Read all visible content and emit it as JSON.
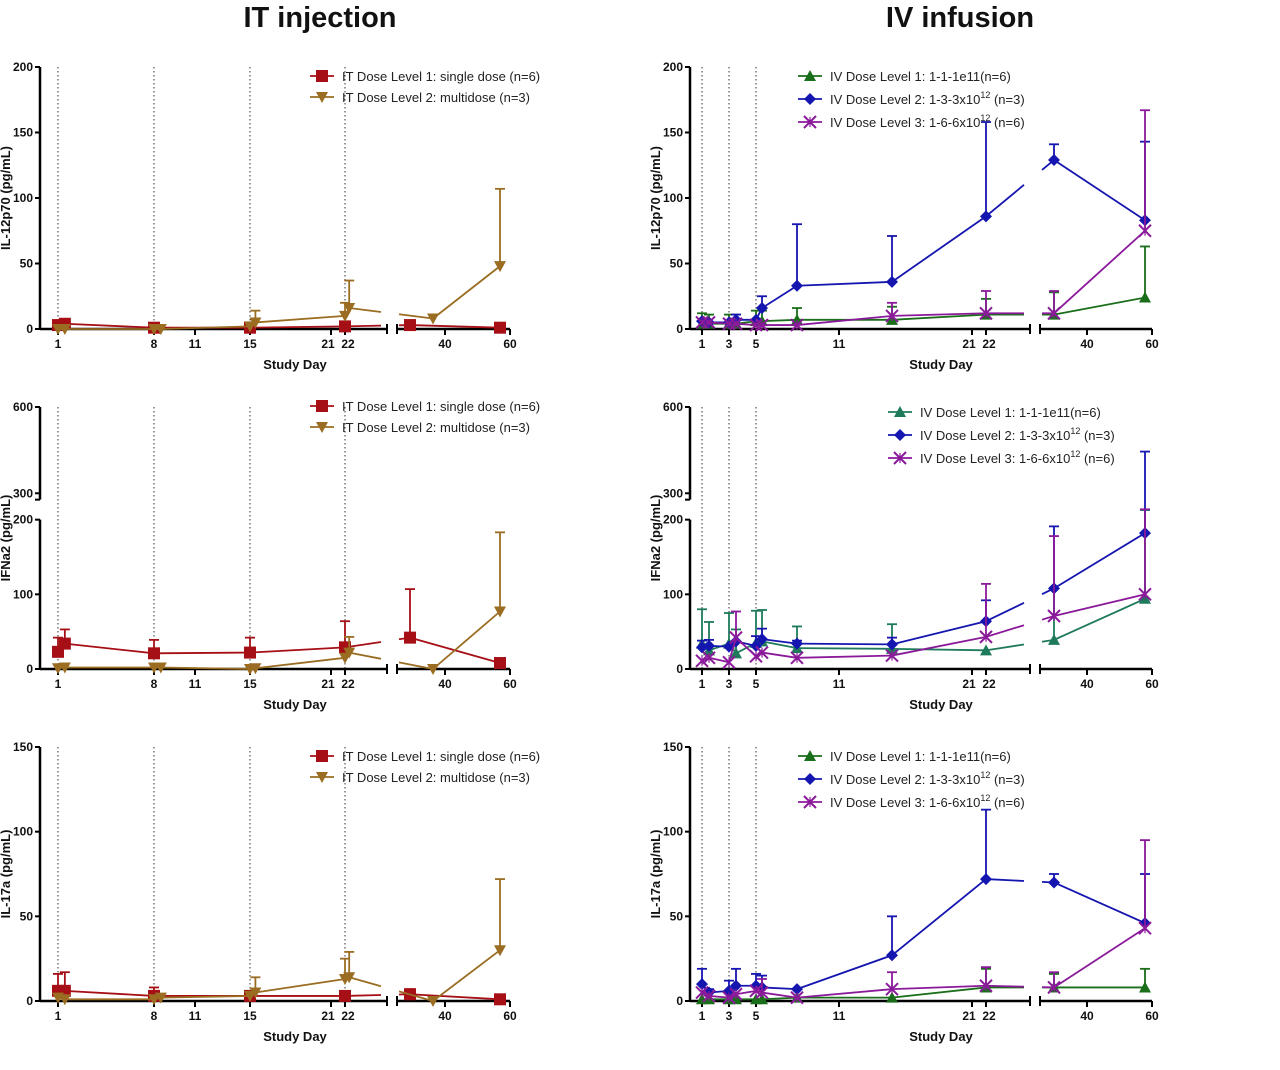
{
  "columns": [
    {
      "title": "IT injection"
    },
    {
      "title": "IV infusion"
    }
  ],
  "chart_data": [
    {
      "id": "it-il12",
      "type": "line",
      "column": "IT injection",
      "ylabel": "IL-12p70 (pg/mL)",
      "xlabel": "Study Day",
      "ylim": [
        0,
        200
      ],
      "yticks": [
        0,
        50,
        100,
        150,
        200
      ],
      "xticks": [
        "1",
        "8",
        "11",
        "15",
        "21",
        "22",
        "40",
        "60"
      ],
      "x_break": true,
      "dose_days": [
        1,
        8,
        15,
        22
      ],
      "series": [
        {
          "name": "IT Dose Level 1: single dose (n=6)",
          "color": "#a50f15",
          "marker": "square",
          "x": [
            1,
            2,
            8,
            15,
            22,
            29,
            57
          ],
          "y": [
            3,
            4,
            1,
            1,
            2,
            3,
            1
          ],
          "err_upper": [
            null,
            null,
            null,
            null,
            null,
            null,
            null
          ]
        },
        {
          "name": "IT Dose Level 2: multidose (n=3)",
          "color": "#9a6d22",
          "marker": "triangle-down",
          "x": [
            1,
            2,
            8,
            9,
            15,
            16,
            22,
            23,
            36,
            57
          ],
          "y": [
            0,
            0,
            0,
            0,
            2,
            5,
            10,
            16,
            8,
            48
          ],
          "err_upper": [
            null,
            null,
            null,
            null,
            null,
            14,
            20,
            37,
            null,
            107
          ]
        }
      ]
    },
    {
      "id": "iv-il12",
      "type": "line",
      "column": "IV infusion",
      "ylabel": "IL-12p70 (pg/mL)",
      "xlabel": "Study Day",
      "ylim": [
        0,
        200
      ],
      "yticks": [
        0,
        50,
        100,
        150,
        200
      ],
      "xticks": [
        "1",
        "3",
        "5",
        "11",
        "21",
        "22",
        "40",
        "60"
      ],
      "x_break": true,
      "dose_days": [
        1,
        3,
        5
      ],
      "series": [
        {
          "name": "IV Dose Level 1: 1-1-1e11(n=6)",
          "color": "#1a6e1a",
          "marker": "triangle-up",
          "x": [
            1,
            1.5,
            3,
            3.5,
            5,
            5.5,
            8,
            15,
            22,
            29,
            57
          ],
          "y": [
            4,
            4,
            4,
            4,
            6,
            6,
            7,
            7,
            11,
            11,
            24
          ],
          "err_upper": [
            12,
            11,
            11,
            11,
            14,
            14,
            16,
            17,
            23,
            28,
            63
          ]
        },
        {
          "name": "IV Dose Level 2: 1-3-3x10^12 (n=3)",
          "color": "#1515b0",
          "marker": "diamond",
          "x": [
            1,
            1.5,
            3,
            3.5,
            5,
            5.5,
            8,
            15,
            22,
            29,
            57
          ],
          "y": [
            6,
            5,
            5,
            7,
            7,
            16,
            33,
            36,
            86,
            129,
            83
          ],
          "err_upper": [
            null,
            null,
            null,
            11,
            null,
            25,
            80,
            71,
            158,
            141,
            143
          ]
        },
        {
          "name": "IV Dose Level 3: 1-6-6x10^12 (n=6)",
          "color": "#8a1a9a",
          "marker": "x",
          "x": [
            1,
            1.5,
            3,
            3.5,
            5,
            5.5,
            8,
            15,
            22,
            29,
            57
          ],
          "y": [
            5,
            5,
            4,
            4,
            3,
            3,
            3,
            10,
            12,
            12,
            75
          ],
          "err_upper": [
            null,
            null,
            null,
            null,
            null,
            null,
            null,
            20,
            29,
            29,
            167
          ]
        }
      ]
    },
    {
      "id": "it-ifna2",
      "type": "line",
      "column": "IT injection",
      "ylabel": "IFNa2 (pg/mL)",
      "xlabel": "Study Day",
      "ylim": [
        0,
        600
      ],
      "y_break": [
        200,
        250
      ],
      "yticks": [
        0,
        100,
        200,
        300,
        600
      ],
      "xticks": [
        "1",
        "8",
        "11",
        "15",
        "21",
        "22",
        "40",
        "60"
      ],
      "x_break": true,
      "dose_days": [
        1,
        8,
        15,
        22
      ],
      "series": [
        {
          "name": "IT Dose Level 1: single dose (n=6)",
          "color": "#a50f15",
          "marker": "square",
          "x": [
            1,
            2,
            8,
            15,
            22,
            29,
            57
          ],
          "y": [
            23,
            34,
            21,
            22,
            29,
            42,
            8
          ],
          "err_upper": [
            42,
            53,
            39,
            42,
            64,
            107,
            null
          ]
        },
        {
          "name": "IT Dose Level 2: multidose (n=3)",
          "color": "#9a6d22",
          "marker": "triangle-down",
          "x": [
            1,
            2,
            8,
            9,
            15,
            16,
            22,
            23,
            36,
            57
          ],
          "y": [
            1,
            2,
            2,
            2,
            0,
            1,
            15,
            22,
            0,
            77
          ],
          "err_upper": [
            null,
            null,
            null,
            null,
            null,
            null,
            null,
            43,
            null,
            183
          ]
        }
      ]
    },
    {
      "id": "iv-ifna2",
      "type": "line",
      "column": "IV infusion",
      "ylabel": "IFNa2 (pg/mL)",
      "xlabel": "Study Day",
      "ylim": [
        0,
        600
      ],
      "y_break": [
        200,
        250
      ],
      "yticks": [
        0,
        100,
        200,
        300,
        600
      ],
      "xticks": [
        "1",
        "3",
        "5",
        "11",
        "21",
        "22",
        "40",
        "60"
      ],
      "x_break": true,
      "dose_days": [
        1,
        3,
        5
      ],
      "series": [
        {
          "name": "IV Dose Level 1: 1-1-1e11(n=6)",
          "color": "#1e7a5a",
          "marker": "triangle-up",
          "x": [
            1,
            1.5,
            3,
            3.5,
            5,
            5.5,
            8,
            15,
            22,
            29,
            57
          ],
          "y": [
            34,
            25,
            34,
            21,
            35,
            37,
            28,
            27,
            25,
            39,
            94
          ],
          "err_upper": [
            80,
            63,
            75,
            53,
            78,
            79,
            57,
            60,
            null,
            108,
            240
          ]
        },
        {
          "name": "IV Dose Level 2: 1-3-3x10^12 (n=3)",
          "color": "#1515b0",
          "marker": "diamond",
          "x": [
            1,
            1.5,
            3,
            3.5,
            5,
            5.5,
            8,
            15,
            22,
            29,
            57
          ],
          "y": [
            29,
            31,
            30,
            37,
            31,
            40,
            34,
            33,
            64,
            108,
            182
          ],
          "err_upper": [
            38,
            39,
            null,
            null,
            44,
            54,
            38,
            42,
            92,
            191,
            445
          ]
        },
        {
          "name": "IV Dose Level 3: 1-6-6x10^12 (n=6)",
          "color": "#8a1a9a",
          "marker": "x",
          "x": [
            1,
            1.5,
            3,
            3.5,
            5,
            5.5,
            8,
            15,
            22,
            29,
            57
          ],
          "y": [
            11,
            15,
            9,
            42,
            17,
            22,
            15,
            18,
            43,
            71,
            100
          ],
          "err_upper": [
            null,
            null,
            null,
            77,
            null,
            null,
            null,
            null,
            114,
            178,
            243
          ]
        }
      ]
    },
    {
      "id": "it-il17a",
      "type": "line",
      "column": "IT injection",
      "ylabel": "IL-17a (pg/mL)",
      "xlabel": "Study Day",
      "ylim": [
        0,
        150
      ],
      "yticks": [
        0,
        50,
        100,
        150
      ],
      "xticks": [
        "1",
        "8",
        "11",
        "15",
        "21",
        "22",
        "40",
        "60"
      ],
      "x_break": true,
      "dose_days": [
        1,
        8,
        15,
        22
      ],
      "series": [
        {
          "name": "IT Dose Level 1: single dose (n=6)",
          "color": "#a50f15",
          "marker": "square",
          "x": [
            1,
            2,
            8,
            15,
            22,
            29,
            57
          ],
          "y": [
            6,
            6,
            3,
            3,
            3,
            4,
            1
          ],
          "err_upper": [
            16,
            17,
            8,
            6,
            null,
            7,
            null
          ]
        },
        {
          "name": "IT Dose Level 2: multidose (n=3)",
          "color": "#9a6d22",
          "marker": "triangle-down",
          "x": [
            1,
            2,
            8,
            9,
            15,
            16,
            22,
            23,
            36,
            57
          ],
          "y": [
            2,
            1,
            1,
            2,
            3,
            5,
            13,
            14,
            0,
            30
          ],
          "err_upper": [
            null,
            null,
            null,
            null,
            null,
            14,
            25,
            29,
            null,
            72
          ]
        }
      ]
    },
    {
      "id": "iv-il17a",
      "type": "line",
      "column": "IV infusion",
      "ylabel": "IL-17a (pg/mL)",
      "xlabel": "Study Day",
      "ylim": [
        0,
        150
      ],
      "yticks": [
        0,
        50,
        100,
        150
      ],
      "xticks": [
        "1",
        "3",
        "5",
        "11",
        "21",
        "22",
        "40",
        "60"
      ],
      "x_break": true,
      "dose_days": [
        1,
        3,
        5
      ],
      "series": [
        {
          "name": "IV Dose Level 1: 1-1-1e11(n=6)",
          "color": "#1a6e1a",
          "marker": "triangle-up",
          "x": [
            1,
            1.5,
            3,
            3.5,
            5,
            5.5,
            8,
            15,
            22,
            29,
            57
          ],
          "y": [
            1,
            1,
            1,
            1,
            1,
            1,
            2,
            2,
            8,
            8,
            8
          ],
          "err_upper": [
            null,
            null,
            null,
            null,
            null,
            null,
            null,
            null,
            19,
            16,
            19
          ]
        },
        {
          "name": "IV Dose Level 2: 1-3-3x10^12 (n=3)",
          "color": "#1515b0",
          "marker": "diamond",
          "x": [
            1,
            1.5,
            3,
            3.5,
            5,
            5.5,
            8,
            15,
            22,
            29,
            57
          ],
          "y": [
            10,
            5,
            6,
            9,
            9,
            8,
            7,
            27,
            72,
            70,
            46
          ],
          "err_upper": [
            19,
            7,
            12,
            19,
            16,
            15,
            null,
            50,
            113,
            75,
            75
          ]
        },
        {
          "name": "IV Dose Level 3: 1-6-6x10^12 (n=6)",
          "color": "#8a1a9a",
          "marker": "x",
          "x": [
            1,
            1.5,
            3,
            3.5,
            5,
            5.5,
            8,
            15,
            22,
            29,
            57
          ],
          "y": [
            5,
            3,
            2,
            4,
            6,
            5,
            2,
            7,
            9,
            8,
            43
          ],
          "err_upper": [
            null,
            null,
            null,
            null,
            null,
            13,
            null,
            17,
            20,
            17,
            95
          ]
        }
      ]
    }
  ]
}
